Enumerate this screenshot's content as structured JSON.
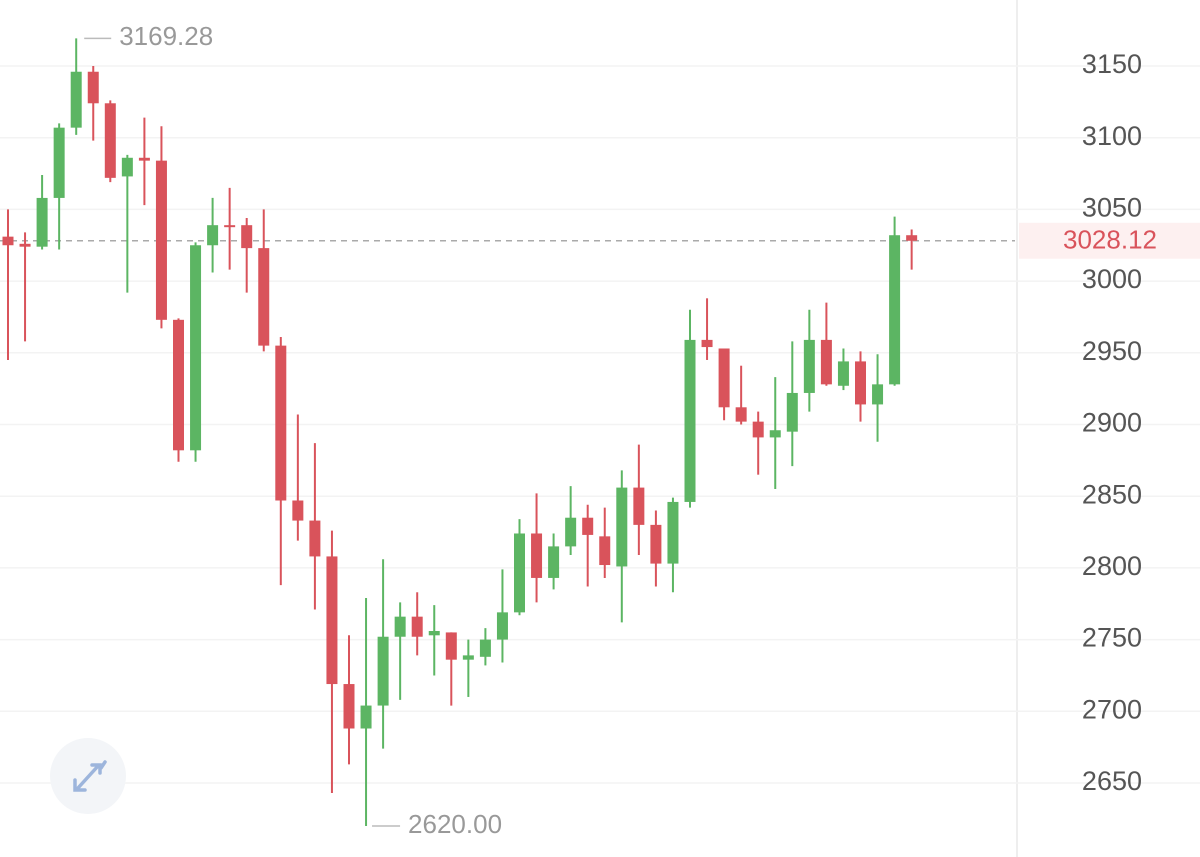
{
  "chart_data": {
    "type": "candlestick",
    "candles": {
      "open": [
        3031,
        3026,
        3024,
        3058,
        3107,
        3146,
        3124,
        3073,
        3086,
        3084,
        2973,
        2882,
        3025,
        3039,
        3039,
        3023,
        2955,
        2847,
        2833,
        2808,
        2719,
        2688,
        2704,
        2752,
        2766,
        2753,
        2755,
        2736,
        2738,
        2750,
        2769,
        2824,
        2793,
        2815,
        2835,
        2822,
        2801,
        2856,
        2830,
        2803,
        2846,
        2959,
        2953,
        2912,
        2902,
        2891,
        2895,
        2922,
        2959,
        2927,
        2944,
        2914,
        2928,
        3032
      ],
      "high": [
        3050,
        3034,
        3074,
        3110,
        3169.28,
        3150,
        3126,
        3088,
        3114,
        3108,
        2974,
        3027,
        3058,
        3065,
        3044,
        3050,
        2961,
        2907,
        2887,
        2826,
        2753,
        2779,
        2806,
        2776,
        2783,
        2774,
        2755,
        2750,
        2758,
        2799,
        2834,
        2852,
        2824,
        2857,
        2844,
        2842,
        2868,
        2886,
        2840,
        2849,
        2980,
        2988,
        2953,
        2941,
        2909,
        2933,
        2958,
        2980,
        2985,
        2953,
        2951,
        2949,
        3045,
        3036
      ],
      "low": [
        2945,
        2958,
        3022,
        3022,
        3102,
        3098,
        3069,
        2992,
        3053,
        2967,
        2874,
        2874,
        3006,
        3008,
        2992,
        2951,
        2788,
        2819,
        2771,
        2643,
        2663,
        2620,
        2674,
        2708,
        2739,
        2725,
        2704,
        2710,
        2732,
        2734,
        2767,
        2776,
        2785,
        2809,
        2787,
        2793,
        2762,
        2809,
        2787,
        2783,
        2842,
        2945,
        2903,
        2900,
        2865,
        2855,
        2871,
        2909,
        2927,
        2924,
        2902,
        2888,
        2927,
        3008
      ],
      "close": [
        3025,
        3024,
        3058,
        3107,
        3146,
        3124,
        3072,
        3086,
        3084,
        2973,
        2882,
        3025,
        3039,
        3038,
        3023,
        2955,
        2847,
        2833,
        2808,
        2719,
        2688,
        2704,
        2752,
        2766,
        2752,
        2756,
        2736,
        2739,
        2750,
        2769,
        2824,
        2793,
        2815,
        2835,
        2823,
        2802,
        2856,
        2830,
        2803,
        2846,
        2959,
        2954,
        2912,
        2902,
        2891,
        2896,
        2922,
        2959,
        2928,
        2944,
        2914,
        2928,
        3032,
        3028.12
      ]
    },
    "up_color": "#5cb563",
    "down_color": "#d9535b",
    "last_price": 3028.12,
    "high_label": 3169.28,
    "low_label": {
      "value": 2620,
      "label": "2620.00"
    },
    "ylim": [
      2600,
      3200
    ],
    "yticks": [
      2650,
      2700,
      2750,
      2800,
      2850,
      2900,
      2950,
      3000,
      3050,
      3100,
      3150
    ],
    "grid": true
  }
}
